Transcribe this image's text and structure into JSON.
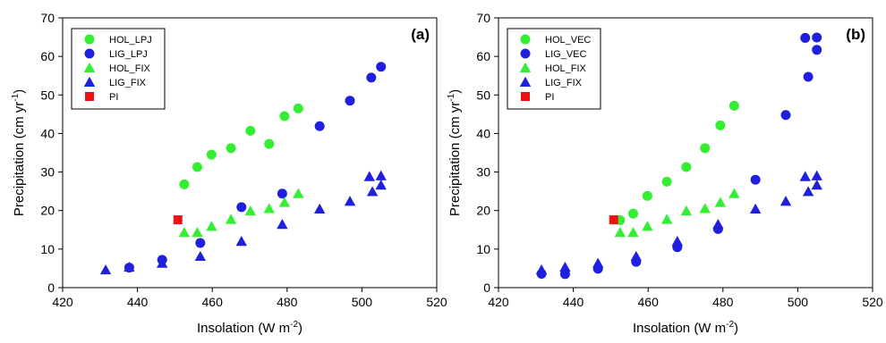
{
  "chart_data": [
    {
      "type": "scatter",
      "panel_label": "(a)",
      "xlabel": "Insolation (W m",
      "xlabel_sup": "-2",
      "xlabel_end": ")",
      "ylabel": "Precipitation (cm yr",
      "ylabel_sup": "-1",
      "ylabel_end": ")",
      "xlim": [
        420,
        520
      ],
      "ylim": [
        0,
        70
      ],
      "xticks": [
        420,
        440,
        460,
        480,
        500,
        520
      ],
      "yticks": [
        0,
        10,
        20,
        30,
        40,
        50,
        60,
        70
      ],
      "legend_position": "top-left",
      "series": [
        {
          "name": "HOL_LPJ",
          "marker": "circle",
          "color": "#33ee33",
          "x": [
            452.5,
            456.0,
            459.8,
            465.0,
            470.2,
            475.2,
            479.3,
            483.0
          ],
          "y": [
            26.8,
            31.3,
            34.5,
            36.2,
            40.7,
            37.3,
            44.5,
            46.5
          ]
        },
        {
          "name": "LIG_LPJ",
          "marker": "circle",
          "color": "#1f1fdd",
          "x": [
            437.8,
            446.6,
            456.8,
            467.8,
            478.7,
            488.7,
            496.8,
            502.5,
            505.1
          ],
          "y": [
            5.2,
            7.2,
            11.6,
            20.9,
            24.4,
            41.9,
            48.5,
            54.5,
            57.3
          ]
        },
        {
          "name": "HOL_FIX",
          "marker": "triangle",
          "color": "#33ee33",
          "x": [
            452.5,
            456.0,
            459.8,
            465.0,
            470.2,
            475.2,
            479.3,
            483.0
          ],
          "y": [
            14.3,
            14.3,
            15.9,
            17.7,
            19.9,
            20.5,
            22.1,
            24.4
          ]
        },
        {
          "name": "LIG_FIX",
          "marker": "triangle",
          "color": "#1f1fdd",
          "x": [
            431.5,
            437.8,
            446.6,
            456.8,
            467.8,
            478.7,
            488.7,
            496.8,
            502.0,
            502.8,
            505.1,
            505.1
          ],
          "y": [
            4.6,
            5.3,
            6.3,
            8.1,
            12.0,
            16.4,
            20.4,
            22.4,
            28.8,
            24.9,
            29.0,
            26.6
          ]
        },
        {
          "name": "PI",
          "marker": "square",
          "color": "#ee1111",
          "x": [
            450.8
          ],
          "y": [
            17.6
          ]
        }
      ]
    },
    {
      "type": "scatter",
      "panel_label": "(b)",
      "xlabel": "Insolation (W m",
      "xlabel_sup": "-2",
      "xlabel_end": ")",
      "ylabel": "Precipitation (cm yr",
      "ylabel_sup": "-1",
      "ylabel_end": ")",
      "xlim": [
        420,
        520
      ],
      "ylim": [
        0,
        70
      ],
      "xticks": [
        420,
        440,
        460,
        480,
        500,
        520
      ],
      "yticks": [
        0,
        10,
        20,
        30,
        40,
        50,
        60,
        70
      ],
      "legend_position": "top-left",
      "series": [
        {
          "name": "HOL_VEC",
          "marker": "circle",
          "color": "#33ee33",
          "x": [
            452.5,
            456.0,
            459.8,
            465.0,
            470.2,
            475.2,
            479.3,
            483.0
          ],
          "y": [
            17.5,
            19.2,
            23.8,
            27.5,
            31.3,
            36.2,
            42.1,
            47.2
          ]
        },
        {
          "name": "LIG_VEC",
          "marker": "circle",
          "color": "#1f1fdd",
          "x": [
            431.5,
            437.8,
            446.6,
            456.8,
            467.8,
            478.7,
            488.7,
            496.8,
            502.0,
            502.8,
            505.1,
            505.1
          ],
          "y": [
            3.6,
            3.5,
            4.9,
            6.7,
            10.5,
            15.2,
            28.0,
            44.8,
            64.8,
            54.7,
            64.9,
            61.7
          ]
        },
        {
          "name": "HOL_FIX",
          "marker": "triangle",
          "color": "#33ee33",
          "x": [
            452.5,
            456.0,
            459.8,
            465.0,
            470.2,
            475.2,
            479.3,
            483.0
          ],
          "y": [
            14.3,
            14.3,
            15.9,
            17.7,
            19.9,
            20.5,
            22.1,
            24.4
          ]
        },
        {
          "name": "LIG_FIX",
          "marker": "triangle",
          "color": "#1f1fdd",
          "x": [
            431.5,
            437.8,
            446.6,
            456.8,
            467.8,
            478.7,
            488.7,
            496.8,
            502.0,
            502.8,
            505.1,
            505.1
          ],
          "y": [
            4.6,
            5.3,
            6.3,
            8.1,
            12.0,
            16.4,
            20.4,
            22.4,
            28.8,
            24.9,
            29.0,
            26.6
          ]
        },
        {
          "name": "PI",
          "marker": "square",
          "color": "#ee1111",
          "x": [
            450.8
          ],
          "y": [
            17.6
          ]
        }
      ]
    }
  ]
}
